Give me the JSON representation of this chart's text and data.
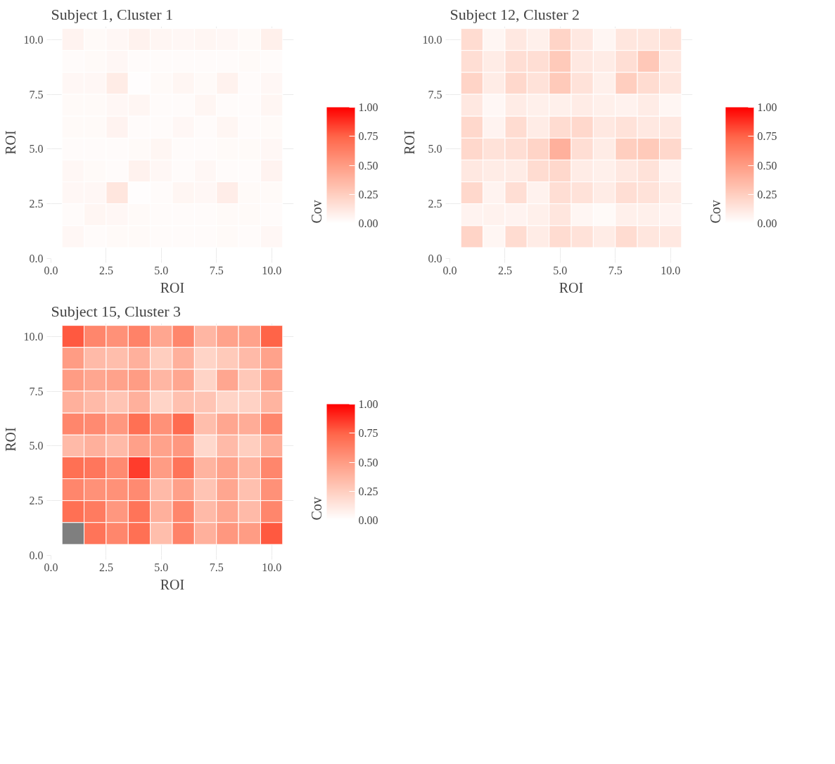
{
  "chart_data": [
    {
      "type": "heatmap",
      "title": "Subject 1, Cluster 1",
      "xlabel": "ROI",
      "ylabel": "ROI",
      "clabel": "Cov",
      "grid": true,
      "x": [
        1,
        2,
        3,
        4,
        5,
        6,
        7,
        8,
        9,
        10
      ],
      "y": [
        10,
        9,
        8,
        7,
        6,
        5,
        4,
        3,
        2,
        1
      ],
      "xlim": [
        0,
        11
      ],
      "ylim": [
        0,
        10.6
      ],
      "xticks": [
        {
          "value": 0,
          "label": "0.0"
        },
        {
          "value": 2.5,
          "label": "2.5"
        },
        {
          "value": 5,
          "label": "5.0"
        },
        {
          "value": 7.5,
          "label": "7.5"
        },
        {
          "value": 10,
          "label": "10.0"
        }
      ],
      "yticks": [
        {
          "value": 0,
          "label": "0.0"
        },
        {
          "value": 2.5,
          "label": "2.5"
        },
        {
          "value": 5,
          "label": "5.0"
        },
        {
          "value": 7.5,
          "label": "7.5"
        },
        {
          "value": 10,
          "label": "10.0"
        }
      ],
      "clim": [
        0,
        1
      ],
      "cticks": [
        {
          "value": 0,
          "label": "0.00"
        },
        {
          "value": 0.25,
          "label": "0.25"
        },
        {
          "value": 0.5,
          "label": "0.50"
        },
        {
          "value": 0.75,
          "label": "0.75"
        },
        {
          "value": 1,
          "label": "1.00"
        }
      ],
      "cells": [
        [
          0.06,
          0.03,
          0.04,
          0.07,
          0.05,
          0.04,
          0.05,
          0.04,
          0.03,
          0.08
        ],
        [
          0.02,
          0.03,
          0.04,
          0.02,
          0.02,
          0.02,
          0.02,
          0.02,
          0.03,
          0.02
        ],
        [
          0.04,
          0.04,
          0.1,
          0.01,
          0.03,
          0.05,
          0.03,
          0.07,
          0.02,
          0.04
        ],
        [
          0.03,
          0.03,
          0.04,
          0.05,
          0.02,
          0.02,
          0.05,
          0.02,
          0.02,
          0.05
        ],
        [
          0.03,
          0.03,
          0.06,
          0.02,
          0.02,
          0.04,
          0.02,
          0.05,
          0.02,
          0.03
        ],
        [
          0.02,
          0.02,
          0.02,
          0.03,
          0.05,
          0.02,
          0.02,
          0.03,
          0.03,
          0.04
        ],
        [
          0.04,
          0.03,
          0.02,
          0.07,
          0.04,
          0.02,
          0.04,
          0.02,
          0.02,
          0.06
        ],
        [
          0.04,
          0.04,
          0.13,
          0.01,
          0.02,
          0.05,
          0.04,
          0.09,
          0.03,
          0.03
        ],
        [
          0.02,
          0.05,
          0.04,
          0.03,
          0.02,
          0.02,
          0.02,
          0.03,
          0.03,
          0.02
        ],
        [
          0.04,
          0.02,
          0.03,
          0.03,
          0.02,
          0.02,
          0.02,
          0.03,
          0.02,
          0.04
        ]
      ]
    },
    {
      "type": "heatmap",
      "title": "Subject 12, Cluster 2",
      "xlabel": "ROI",
      "ylabel": "ROI",
      "clabel": "Cov",
      "grid": true,
      "x": [
        1,
        2,
        3,
        4,
        5,
        6,
        7,
        8,
        9,
        10
      ],
      "y": [
        10,
        9,
        8,
        7,
        6,
        5,
        4,
        3,
        2,
        1
      ],
      "xlim": [
        0,
        11
      ],
      "ylim": [
        0,
        10.6
      ],
      "xticks": [
        {
          "value": 0,
          "label": "0.0"
        },
        {
          "value": 2.5,
          "label": "2.5"
        },
        {
          "value": 5,
          "label": "5.0"
        },
        {
          "value": 7.5,
          "label": "7.5"
        },
        {
          "value": 10,
          "label": "10.0"
        }
      ],
      "yticks": [
        {
          "value": 0,
          "label": "0.0"
        },
        {
          "value": 2.5,
          "label": "2.5"
        },
        {
          "value": 5,
          "label": "5.0"
        },
        {
          "value": 7.5,
          "label": "7.5"
        },
        {
          "value": 10,
          "label": "10.0"
        }
      ],
      "clim": [
        0,
        1
      ],
      "cticks": [
        {
          "value": 0,
          "label": "0.00"
        },
        {
          "value": 0.25,
          "label": "0.25"
        },
        {
          "value": 0.5,
          "label": "0.50"
        },
        {
          "value": 0.75,
          "label": "0.75"
        },
        {
          "value": 1,
          "label": "1.00"
        }
      ],
      "cells": [
        [
          0.18,
          0.05,
          0.12,
          0.08,
          0.22,
          0.12,
          0.05,
          0.13,
          0.13,
          0.15
        ],
        [
          0.17,
          0.1,
          0.17,
          0.17,
          0.27,
          0.12,
          0.1,
          0.17,
          0.28,
          0.12
        ],
        [
          0.22,
          0.1,
          0.2,
          0.15,
          0.27,
          0.15,
          0.08,
          0.25,
          0.18,
          0.13
        ],
        [
          0.12,
          0.04,
          0.1,
          0.08,
          0.08,
          0.1,
          0.08,
          0.07,
          0.1,
          0.05
        ],
        [
          0.2,
          0.06,
          0.18,
          0.1,
          0.18,
          0.2,
          0.12,
          0.15,
          0.12,
          0.12
        ],
        [
          0.2,
          0.15,
          0.17,
          0.22,
          0.4,
          0.17,
          0.1,
          0.25,
          0.27,
          0.2
        ],
        [
          0.12,
          0.1,
          0.1,
          0.18,
          0.2,
          0.1,
          0.08,
          0.12,
          0.15,
          0.06
        ],
        [
          0.2,
          0.06,
          0.17,
          0.07,
          0.17,
          0.15,
          0.1,
          0.17,
          0.15,
          0.1
        ],
        [
          0.06,
          0.07,
          0.06,
          0.08,
          0.13,
          0.05,
          0.03,
          0.08,
          0.08,
          0.06
        ],
        [
          0.22,
          0.05,
          0.18,
          0.1,
          0.18,
          0.15,
          0.1,
          0.18,
          0.13,
          0.12
        ]
      ]
    },
    {
      "type": "heatmap",
      "title": "Subject 15, Cluster 3",
      "xlabel": "ROI",
      "ylabel": "ROI",
      "clabel": "Cov",
      "grid": true,
      "x": [
        1,
        2,
        3,
        4,
        5,
        6,
        7,
        8,
        9,
        10
      ],
      "y": [
        10,
        9,
        8,
        7,
        6,
        5,
        4,
        3,
        2,
        1
      ],
      "xlim": [
        0,
        11
      ],
      "ylim": [
        0,
        10.6
      ],
      "xticks": [
        {
          "value": 0,
          "label": "0.0"
        },
        {
          "value": 2.5,
          "label": "2.5"
        },
        {
          "value": 5,
          "label": "5.0"
        },
        {
          "value": 7.5,
          "label": "7.5"
        },
        {
          "value": 10,
          "label": "10.0"
        }
      ],
      "yticks": [
        {
          "value": 0,
          "label": "0.0"
        },
        {
          "value": 2.5,
          "label": "2.5"
        },
        {
          "value": 5,
          "label": "5.0"
        },
        {
          "value": 7.5,
          "label": "7.5"
        },
        {
          "value": 10,
          "label": "10.0"
        }
      ],
      "clim": [
        0,
        1
      ],
      "cticks": [
        {
          "value": 0,
          "label": "0.00"
        },
        {
          "value": 0.25,
          "label": "0.25"
        },
        {
          "value": 0.5,
          "label": "0.50"
        },
        {
          "value": 0.75,
          "label": "0.75"
        },
        {
          "value": 1,
          "label": "1.00"
        }
      ],
      "cells": [
        [
          0.78,
          0.6,
          0.55,
          0.62,
          0.45,
          0.6,
          0.37,
          0.47,
          0.47,
          0.75
        ],
        [
          0.5,
          0.35,
          0.33,
          0.4,
          0.25,
          0.4,
          0.22,
          0.27,
          0.35,
          0.47
        ],
        [
          0.5,
          0.45,
          0.47,
          0.5,
          0.37,
          0.45,
          0.22,
          0.45,
          0.28,
          0.48
        ],
        [
          0.4,
          0.35,
          0.3,
          0.4,
          0.22,
          0.32,
          0.3,
          0.22,
          0.23,
          0.38
        ],
        [
          0.6,
          0.58,
          0.52,
          0.7,
          0.55,
          0.72,
          0.33,
          0.45,
          0.42,
          0.6
        ],
        [
          0.35,
          0.4,
          0.35,
          0.48,
          0.47,
          0.52,
          0.2,
          0.35,
          0.25,
          0.42
        ],
        [
          0.7,
          0.67,
          0.58,
          0.85,
          0.5,
          0.68,
          0.38,
          0.47,
          0.38,
          0.6
        ],
        [
          0.6,
          0.55,
          0.55,
          0.58,
          0.35,
          0.48,
          0.3,
          0.45,
          0.32,
          0.55
        ],
        [
          0.7,
          0.65,
          0.52,
          0.68,
          0.4,
          0.6,
          0.35,
          0.45,
          0.35,
          0.6
        ],
        [
          null,
          0.68,
          0.6,
          0.7,
          0.33,
          0.62,
          0.4,
          0.52,
          0.5,
          0.78
        ]
      ]
    }
  ]
}
